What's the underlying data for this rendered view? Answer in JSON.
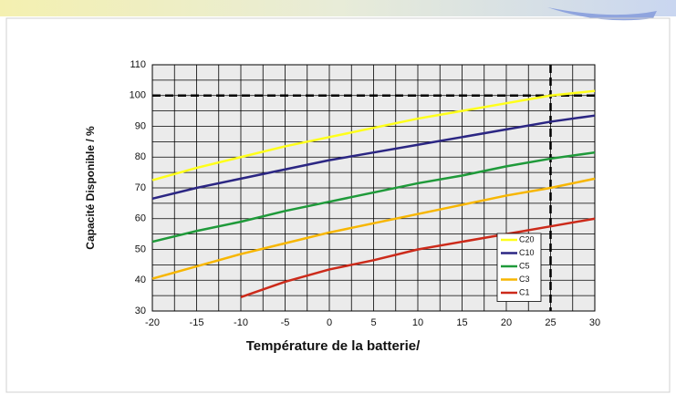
{
  "chart_data": {
    "type": "line",
    "xlabel": "Température de la batterie/",
    "ylabel": "Capacité Disponible  / %",
    "x": [
      -20,
      -15,
      -10,
      -5,
      0,
      5,
      10,
      15,
      20,
      25,
      30
    ],
    "series": [
      {
        "name": "C20",
        "color": "#ffff1a",
        "values": [
          72.5,
          76.5,
          80,
          83.5,
          86.5,
          89.5,
          92.5,
          95,
          97.5,
          100,
          101.5
        ]
      },
      {
        "name": "C10",
        "color": "#2b2683",
        "values": [
          66.5,
          70,
          73,
          76,
          79,
          81.5,
          84,
          86.5,
          89,
          91.5,
          93.5
        ]
      },
      {
        "name": "C5",
        "color": "#1f9a3a",
        "values": [
          52.5,
          56,
          59,
          62.5,
          65.5,
          68.5,
          71.5,
          74,
          77,
          79.5,
          81.5
        ]
      },
      {
        "name": "C3",
        "color": "#f7b600",
        "values": [
          40.5,
          44.5,
          48.5,
          52,
          55.5,
          58.5,
          61.5,
          64.5,
          67.5,
          70,
          73
        ]
      },
      {
        "name": "C1",
        "color": "#cc2a1a",
        "values": [
          null,
          null,
          34.5,
          39.5,
          43.5,
          46.5,
          50,
          52.5,
          55,
          57.5,
          60
        ]
      }
    ],
    "xlim": [
      -20,
      30
    ],
    "xticks": [
      -20,
      -15,
      -10,
      -5,
      0,
      5,
      10,
      15,
      20,
      25,
      30
    ],
    "ylim": [
      30,
      110
    ],
    "yticks": [
      30,
      40,
      50,
      60,
      70,
      80,
      90,
      100,
      110
    ],
    "minor_xgrid": [
      -17.5,
      -12.5,
      -7.5,
      -2.5,
      2.5,
      7.5,
      12.5,
      17.5,
      22.5,
      27.5
    ],
    "minor_ygrid": [
      35,
      45,
      55,
      65,
      75,
      85,
      95,
      105
    ],
    "reference_lines": {
      "y": 100,
      "x": 25
    },
    "grid": true,
    "legend": "lower right"
  }
}
